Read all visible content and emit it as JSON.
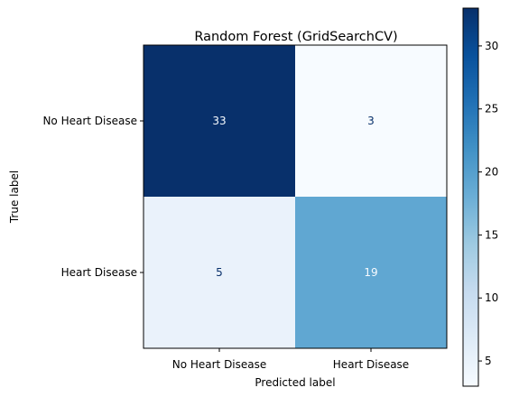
{
  "chart_data": {
    "type": "heatmap",
    "title": "Random Forest (GridSearchCV)",
    "xlabel": "Predicted label",
    "ylabel": "True label",
    "x_categories": [
      "No Heart Disease",
      "Heart Disease"
    ],
    "y_categories": [
      "No Heart Disease",
      "Heart Disease"
    ],
    "values": [
      [
        33,
        3
      ],
      [
        5,
        19
      ]
    ],
    "colormap": "Blues",
    "colorbar": {
      "min": 3,
      "max": 33,
      "ticks": [
        5,
        10,
        15,
        20,
        25,
        30
      ]
    },
    "grid": false
  },
  "colors": {
    "low": "#f7fbff",
    "high": "#08306b",
    "text_on_dark": "#f7fbff",
    "text_on_light": "#08306b"
  }
}
